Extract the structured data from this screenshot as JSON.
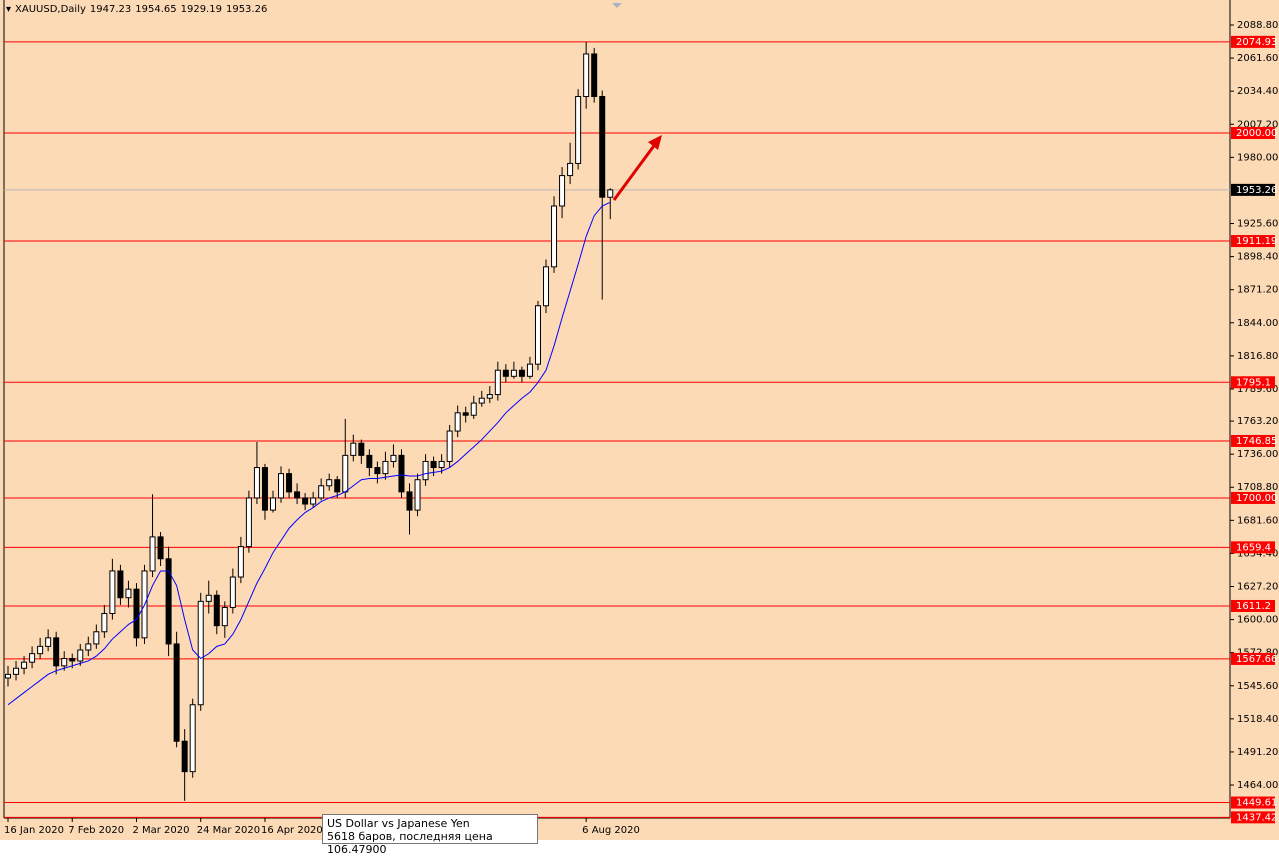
{
  "chart_data": {
    "type": "candlestick",
    "symbol": "XAUUSD,Daily",
    "background": "#fddab6",
    "up_color": "#ffffff",
    "down_color": "#000000",
    "wick_color": "#000000",
    "ma_color": "#0000ff",
    "level_color": "#ff0000",
    "last_color": "#000000",
    "ylim": [
      1436.9,
      2109.35
    ],
    "yticks": [
      {
        "value": 2088.8,
        "label": "2088.80"
      },
      {
        "value": 2061.6,
        "label": "2061.60"
      },
      {
        "value": 2034.4,
        "label": "2034.40"
      },
      {
        "value": 2007.2,
        "label": "2007.20"
      },
      {
        "value": 1980,
        "label": "1980.00"
      },
      {
        "value": 1925.6,
        "label": "1925.60"
      },
      {
        "value": 1898.4,
        "label": "1898.40"
      },
      {
        "value": 1871.2,
        "label": "1871.20"
      },
      {
        "value": 1844,
        "label": "1844.00"
      },
      {
        "value": 1816.8,
        "label": "1816.80"
      },
      {
        "value": 1789.6,
        "label": "1789.60"
      },
      {
        "value": 1763.2,
        "label": "1763.20"
      },
      {
        "value": 1736,
        "label": "1736.00"
      },
      {
        "value": 1708.8,
        "label": "1708.80"
      },
      {
        "value": 1681.6,
        "label": "1681.60"
      },
      {
        "value": 1654.4,
        "label": "1654.40"
      },
      {
        "value": 1627.2,
        "label": "1627.20"
      },
      {
        "value": 1600,
        "label": "1600.00"
      },
      {
        "value": 1572.8,
        "label": "1572.80"
      },
      {
        "value": 1545.6,
        "label": "1545.60"
      },
      {
        "value": 1518.4,
        "label": "1518.40"
      },
      {
        "value": 1491.2,
        "label": "1491.20"
      },
      {
        "value": 1464,
        "label": "1464.00"
      }
    ],
    "levels": [
      2074.93,
      {
        "value": 2000,
        "label": "2000.00"
      },
      1911.19,
      1795.1,
      1746.85,
      {
        "value": 1700,
        "label": "1700.00"
      },
      1659.4,
      1611.2,
      1567.66,
      1449.61,
      1437.42
    ],
    "categories": [
      "16 Jan 2020",
      null,
      null,
      null,
      null,
      null,
      null,
      null,
      "7 Feb 2020",
      null,
      null,
      null,
      null,
      null,
      null,
      null,
      "2 Mar 2020",
      null,
      null,
      null,
      null,
      null,
      null,
      null,
      "24 Mar 2020",
      null,
      null,
      null,
      null,
      null,
      null,
      null,
      "16 Apr 2020",
      null,
      null,
      null,
      null,
      null,
      null,
      null,
      null,
      null,
      null,
      null,
      null,
      null,
      null,
      null,
      null,
      null,
      null,
      null,
      null,
      null,
      null,
      null,
      null,
      null,
      null,
      null,
      null,
      null,
      null,
      null,
      null,
      null,
      null,
      null,
      null,
      null,
      null,
      null,
      "6 Aug 2020",
      null,
      null,
      null
    ],
    "open": [
      1552,
      1555,
      1560,
      1565,
      1572,
      1578,
      1585,
      1562,
      1568,
      1566,
      1575,
      1580,
      1590,
      1605,
      1640,
      1618,
      1625,
      1585,
      1640,
      1668,
      1650,
      1580,
      1500,
      1475,
      1530,
      1615,
      1620,
      1595,
      1610,
      1635,
      1660,
      1700,
      1725,
      1690,
      1700,
      1720,
      1705,
      1700,
      1695,
      1700,
      1710,
      1715,
      1705,
      1735,
      1745,
      1735,
      1725,
      1720,
      1730,
      1735,
      1705,
      1690,
      1715,
      1730,
      1725,
      1730,
      1755,
      1770,
      1768,
      1778,
      1782,
      1785,
      1805,
      1800,
      1805,
      1800,
      1810,
      1858,
      1890,
      1940,
      1965,
      1975,
      2030,
      2065,
      2030,
      1947.23
    ],
    "high": [
      1562,
      1566,
      1570,
      1578,
      1585,
      1592,
      1590,
      1574,
      1572,
      1580,
      1586,
      1596,
      1612,
      1650,
      1645,
      1632,
      1630,
      1645,
      1703,
      1672,
      1660,
      1590,
      1510,
      1535,
      1622,
      1632,
      1624,
      1615,
      1642,
      1668,
      1706,
      1746,
      1728,
      1706,
      1726,
      1724,
      1712,
      1704,
      1705,
      1716,
      1720,
      1718,
      1765,
      1752,
      1748,
      1740,
      1730,
      1738,
      1744,
      1740,
      1712,
      1720,
      1736,
      1734,
      1736,
      1760,
      1776,
      1775,
      1784,
      1788,
      1792,
      1812,
      1810,
      1812,
      1808,
      1816,
      1862,
      1896,
      1948,
      1972,
      1992,
      2036,
      2074.93,
      2070,
      2035,
      1954.65
    ],
    "low": [
      1545,
      1550,
      1555,
      1560,
      1568,
      1574,
      1555,
      1558,
      1560,
      1562,
      1570,
      1576,
      1585,
      1600,
      1612,
      1610,
      1578,
      1580,
      1635,
      1644,
      1570,
      1495,
      1451,
      1470,
      1525,
      1605,
      1588,
      1585,
      1605,
      1630,
      1655,
      1695,
      1682,
      1688,
      1696,
      1700,
      1695,
      1690,
      1692,
      1698,
      1706,
      1700,
      1700,
      1730,
      1728,
      1718,
      1712,
      1715,
      1725,
      1700,
      1670,
      1685,
      1710,
      1718,
      1720,
      1725,
      1750,
      1762,
      1765,
      1775,
      1778,
      1780,
      1795,
      1798,
      1795,
      1798,
      1805,
      1852,
      1885,
      1930,
      1958,
      1970,
      2020,
      2025,
      1863,
      1929.19
    ],
    "close": [
      1555,
      1560,
      1565,
      1572,
      1578,
      1585,
      1562,
      1568,
      1566,
      1575,
      1580,
      1590,
      1605,
      1640,
      1618,
      1625,
      1585,
      1640,
      1668,
      1650,
      1580,
      1500,
      1475,
      1530,
      1615,
      1620,
      1595,
      1610,
      1635,
      1660,
      1700,
      1725,
      1690,
      1700,
      1720,
      1705,
      1700,
      1695,
      1700,
      1710,
      1715,
      1705,
      1735,
      1745,
      1735,
      1725,
      1720,
      1730,
      1735,
      1705,
      1690,
      1715,
      1730,
      1725,
      1730,
      1755,
      1770,
      1768,
      1778,
      1782,
      1785,
      1805,
      1800,
      1805,
      1800,
      1810,
      1858,
      1890,
      1940,
      1965,
      1975,
      2030,
      2065,
      2030,
      1947.23,
      1953.26
    ],
    "ma": [
      1530,
      1535,
      1540,
      1545,
      1550,
      1555,
      1558,
      1560,
      1562,
      1564,
      1566,
      1570,
      1576,
      1584,
      1590,
      1596,
      1600,
      1612,
      1628,
      1640,
      1640,
      1628,
      1600,
      1575,
      1568,
      1572,
      1578,
      1580,
      1588,
      1600,
      1615,
      1630,
      1642,
      1655,
      1665,
      1675,
      1682,
      1688,
      1692,
      1697,
      1700,
      1702,
      1705,
      1710,
      1715,
      1716,
      1716,
      1717,
      1718,
      1719,
      1718,
      1718,
      1720,
      1721,
      1722,
      1725,
      1730,
      1736,
      1742,
      1748,
      1755,
      1762,
      1770,
      1776,
      1782,
      1787,
      1795,
      1805,
      1825,
      1848,
      1870,
      1892,
      1915,
      1932,
      1940,
      1943
    ],
    "tooltip": {
      "title": "US Dollar vs Japanese Yen",
      "text": "5618 баров, последняя цена 106.47900"
    }
  }
}
